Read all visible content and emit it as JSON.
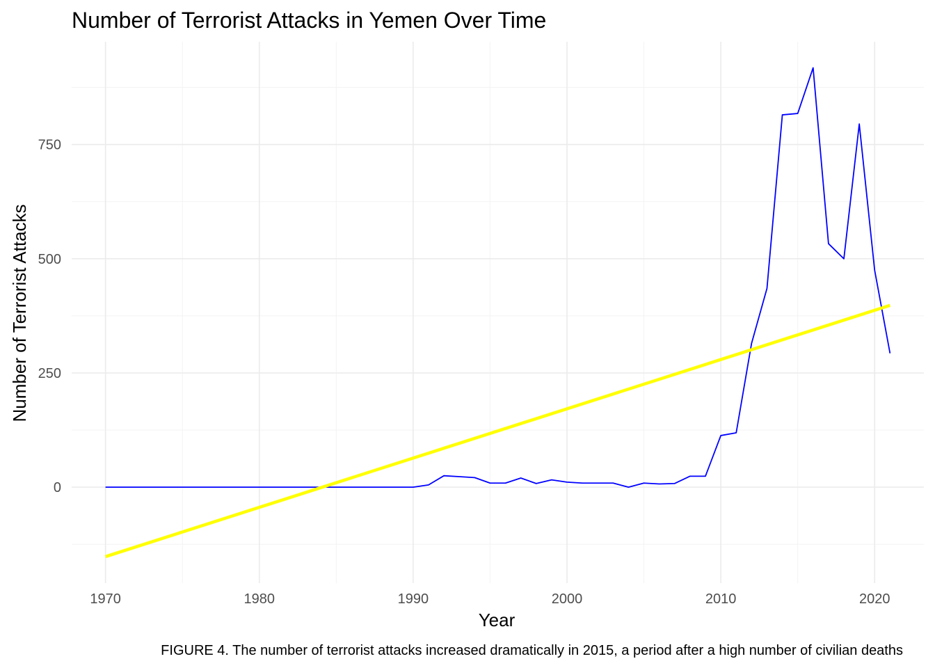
{
  "chart_data": {
    "type": "line",
    "title": "Number of Terrorist Attacks in Yemen Over Time",
    "xlabel": "Year",
    "ylabel": "Number of Terrorist Attacks",
    "caption": "FIGURE 4. The number of terrorist attacks increased dramatically in 2015, a period after a high number of civilian deaths",
    "xlim": [
      1967.8,
      2023.2
    ],
    "ylim": [
      -210,
      975
    ],
    "x_ticks": [
      1970,
      1980,
      1990,
      2000,
      2010,
      2020
    ],
    "x_tick_labels": [
      "1970",
      "1980",
      "1990",
      "2000",
      "2010",
      "2020"
    ],
    "y_ticks": [
      0,
      250,
      500,
      750
    ],
    "y_tick_labels": [
      "0",
      "250",
      "500",
      "750"
    ],
    "grid": true,
    "legend": "none",
    "series": [
      {
        "color": "#0000ff",
        "x": [
          1970,
          1971,
          1972,
          1973,
          1974,
          1975,
          1976,
          1977,
          1978,
          1979,
          1980,
          1981,
          1982,
          1983,
          1984,
          1985,
          1986,
          1987,
          1988,
          1989,
          1990,
          1991,
          1992,
          1993,
          1994,
          1995,
          1996,
          1997,
          1998,
          1999,
          2000,
          2001,
          2002,
          2003,
          2004,
          2005,
          2006,
          2007,
          2008,
          2009,
          2010,
          2011,
          2012,
          2013,
          2014,
          2015,
          2016,
          2017,
          2018,
          2019,
          2020,
          2021
        ],
        "y": [
          0,
          0,
          0,
          0,
          0,
          0,
          0,
          0,
          0,
          0,
          0,
          0,
          0,
          0,
          0,
          0,
          0,
          0,
          0,
          0,
          0,
          5,
          25,
          23,
          21,
          9,
          9,
          20,
          8,
          16,
          11,
          9,
          9,
          9,
          0,
          9,
          7,
          8,
          24,
          24,
          113,
          119,
          315,
          435,
          815,
          818,
          918,
          533,
          500,
          795,
          475,
          293
        ]
      },
      {
        "color": "#ffff00",
        "x": [
          1970,
          2021
        ],
        "y": [
          -152,
          398
        ]
      }
    ]
  }
}
